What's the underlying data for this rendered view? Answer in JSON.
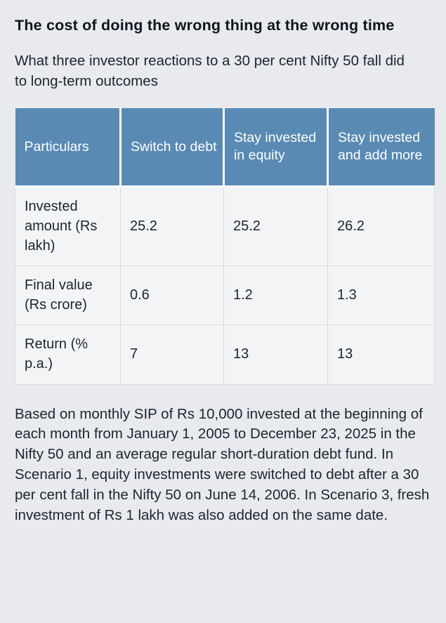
{
  "page": {
    "title": "The cost of doing the wrong thing at the wrong time",
    "subtitle": "What three investor reactions to a 30 per cent Nifty 50 fall did to long-term outcomes",
    "footnote": "Based on monthly SIP of Rs 10,000 invested at the beginning of each month from January 1, 2005 to December 23, 2025 in the Nifty 50 and an average regular short-duration debt fund. In Scenario 1, equity investments were switched to debt after a 30 per cent fall in the Nifty 50 on June 14, 2006. In Scenario 3, fresh investment of Rs 1 lakh was also added on the same date."
  },
  "chart_data": {
    "type": "table",
    "title": "The cost of doing the wrong thing at the wrong time",
    "subtitle": "What three investor reactions to a 30 per cent Nifty 50 fall did to long-term outcomes",
    "columns": [
      "Particulars",
      "Switch to debt",
      "Stay invested in equity",
      "Stay invested and add more"
    ],
    "rows": [
      [
        "Invested amount (Rs lakh)",
        "25.2",
        "25.2",
        "26.2"
      ],
      [
        "Final value (Rs crore)",
        "0.6",
        "1.2",
        "1.3"
      ],
      [
        "Return (% p.a.)",
        "7",
        "13",
        "13"
      ]
    ],
    "footnote": "Based on monthly SIP of Rs 10,000 invested at the beginning of each month from January 1, 2005 to December 23, 2025 in the Nifty 50 and an average regular short-duration debt fund. In Scenario 1, equity investments were switched to debt after a 30 per cent fall in the Nifty 50 on June 14, 2006. In Scenario 3, fresh investment of Rs 1 lakh was also added on the same date."
  },
  "colors": {
    "page_bg": "#e8eaed",
    "header_bg": "#588ab4",
    "header_text": "#ffffff",
    "cell_bg": "#f3f4f6",
    "cell_border": "#d8dbde",
    "text": "#1c2530",
    "title_text": "#10151d"
  }
}
